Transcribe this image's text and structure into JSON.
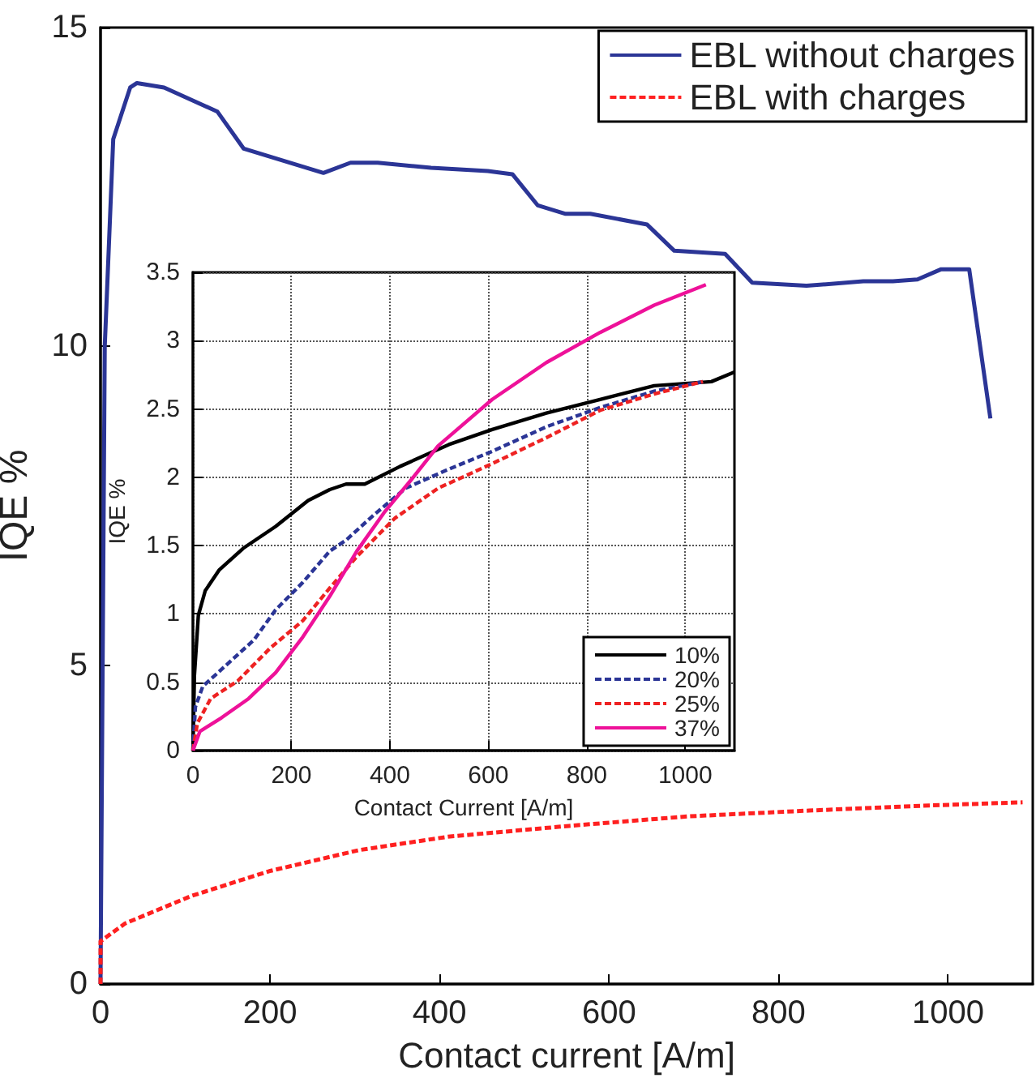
{
  "chart_data": [
    {
      "type": "line",
      "xlabel": "Contact current [A/m]",
      "ylabel": "IQE %",
      "xlim": [
        0,
        1100
      ],
      "xticks": [
        0,
        200,
        400,
        600,
        800,
        1000
      ],
      "ylim": [
        0,
        15
      ],
      "yticks": [
        0,
        5,
        10,
        15
      ],
      "legend": "top right",
      "marker": "none",
      "series": [
        {
          "name": "EBL without charges",
          "color": "#2b3596",
          "line_style": "solid",
          "x": [
            0,
            5,
            15,
            35,
            43,
            75,
            138,
            169,
            263,
            295,
            327,
            390,
            457,
            486,
            516,
            548,
            578,
            645,
            677,
            737,
            769,
            833,
            900,
            935,
            964,
            992,
            1025,
            1050
          ],
          "values": [
            0,
            10,
            13.25,
            14.06,
            14.13,
            14.06,
            13.68,
            13.1,
            12.72,
            12.88,
            12.88,
            12.8,
            12.75,
            12.7,
            12.21,
            12.08,
            12.08,
            11.91,
            11.5,
            11.45,
            11,
            10.95,
            11.02,
            11.02,
            11.05,
            11.21,
            11.21,
            8.87
          ]
        },
        {
          "name": "EBL with charges",
          "color": "#ff2020",
          "line_style": "dashed",
          "x": [
            0,
            0,
            29,
            107,
            199,
            305,
            410,
            553,
            694,
            836,
            978,
            1088
          ],
          "values": [
            0,
            0.67,
            0.95,
            1.38,
            1.77,
            2.1,
            2.31,
            2.48,
            2.63,
            2.72,
            2.8,
            2.85
          ]
        }
      ]
    },
    {
      "type": "line",
      "xlabel": "Contact Current [A/m]",
      "ylabel": "IQE %",
      "xlim": [
        0,
        1100
      ],
      "xticks": [
        0,
        200,
        400,
        600,
        800,
        1000
      ],
      "ylim": [
        0,
        3.5
      ],
      "yticks": [
        0,
        0.5,
        1,
        1.5,
        2,
        2.5,
        3,
        3.5
      ],
      "grid": true,
      "legend": "bottom right",
      "marker": "none",
      "series": [
        {
          "name": "10%",
          "color": "#000000",
          "line_style": "solid",
          "x": [
            0,
            3,
            11,
            25,
            53,
            102,
            168,
            234,
            278,
            311,
            349,
            421,
            520,
            608,
            718,
            827,
            937,
            1053,
            1100
          ],
          "values": [
            0,
            0.55,
            0.99,
            1.17,
            1.32,
            1.48,
            1.64,
            1.83,
            1.91,
            1.95,
            1.95,
            2.08,
            2.24,
            2.35,
            2.47,
            2.57,
            2.67,
            2.7,
            2.77
          ]
        },
        {
          "name": "20%",
          "color": "#2b3596",
          "line_style": "dashed",
          "x": [
            0,
            5,
            20,
            69,
            124,
            168,
            223,
            278,
            311,
            366,
            432,
            520,
            608,
            718,
            827,
            937,
            1036
          ],
          "values": [
            0,
            0.32,
            0.47,
            0.63,
            0.81,
            1.03,
            1.23,
            1.46,
            1.54,
            1.72,
            1.92,
            2.06,
            2.19,
            2.37,
            2.51,
            2.63,
            2.7
          ]
        },
        {
          "name": "25%",
          "color": "#ee2222",
          "line_style": "dashed",
          "x": [
            0,
            9,
            36,
            91,
            157,
            223,
            278,
            333,
            410,
            498,
            608,
            718,
            827,
            937,
            1036
          ],
          "values": [
            0,
            0.2,
            0.38,
            0.51,
            0.75,
            0.95,
            1.19,
            1.42,
            1.7,
            1.92,
            2.1,
            2.29,
            2.49,
            2.61,
            2.7
          ]
        },
        {
          "name": "37%",
          "color": "#ee1199",
          "line_style": "solid",
          "x": [
            0,
            14,
            58,
            113,
            168,
            223,
            278,
            333,
            388,
            443,
            498,
            608,
            718,
            827,
            937,
            1042
          ],
          "values": [
            0,
            0.14,
            0.24,
            0.38,
            0.57,
            0.83,
            1.13,
            1.46,
            1.74,
            1.98,
            2.23,
            2.57,
            2.84,
            3.06,
            3.26,
            3.41
          ]
        }
      ]
    }
  ]
}
